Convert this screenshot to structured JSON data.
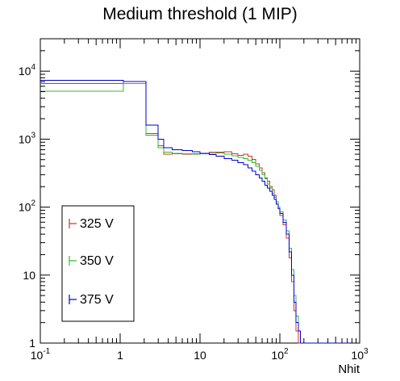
{
  "chart_data": {
    "type": "line",
    "title": "Medium threshold (1 MIP)",
    "xlabel": "Nhit",
    "ylabel": "",
    "x_scale": "log",
    "y_scale": "log",
    "xlim": [
      0.1,
      1000
    ],
    "ylim": [
      1,
      30000
    ],
    "grid": false,
    "legend_position": "bottom-left",
    "x_tick_labels": [
      {
        "value": 0.1,
        "base": "10",
        "exp": "-1"
      },
      {
        "value": 1,
        "base": "1",
        "exp": ""
      },
      {
        "value": 10,
        "base": "10",
        "exp": ""
      },
      {
        "value": 100,
        "base": "10",
        "exp": "2"
      },
      {
        "value": 1000,
        "base": "10",
        "exp": "3"
      }
    ],
    "y_tick_labels": [
      {
        "value": 1,
        "base": "1",
        "exp": ""
      },
      {
        "value": 10,
        "base": "10",
        "exp": ""
      },
      {
        "value": 100,
        "base": "10",
        "exp": "2"
      },
      {
        "value": 1000,
        "base": "10",
        "exp": "3"
      },
      {
        "value": 10000,
        "base": "10",
        "exp": "4"
      }
    ],
    "series": [
      {
        "name": "325 V",
        "color": "#cc3333",
        "x": [
          0.1,
          1.1,
          2.1,
          3.0,
          3.5,
          4.5,
          6,
          8,
          10,
          13,
          16,
          20,
          25,
          30,
          35,
          40,
          45,
          50,
          55,
          60,
          65,
          70,
          75,
          80,
          85,
          90,
          95,
          100,
          110,
          120,
          130,
          140,
          150,
          160,
          170,
          180,
          190,
          200
        ],
        "y": [
          6600,
          7000,
          1200,
          800,
          600,
          610,
          600,
          610,
          620,
          640,
          640,
          650,
          610,
          580,
          600,
          560,
          500,
          430,
          380,
          320,
          270,
          240,
          200,
          180,
          150,
          120,
          95,
          75,
          55,
          35,
          18,
          8,
          3,
          1.5,
          1,
          1,
          1,
          1
        ]
      },
      {
        "name": "350 V",
        "color": "#33bb33",
        "x": [
          0.1,
          1.1,
          2.1,
          3.0,
          3.5,
          4.5,
          6,
          8,
          10,
          13,
          16,
          20,
          25,
          30,
          35,
          40,
          45,
          50,
          55,
          60,
          65,
          70,
          75,
          80,
          85,
          90,
          95,
          100,
          110,
          120,
          130,
          140,
          150,
          160,
          170,
          180,
          190,
          200
        ],
        "y": [
          5100,
          6600,
          1150,
          750,
          640,
          620,
          610,
          600,
          610,
          620,
          630,
          600,
          570,
          540,
          520,
          490,
          450,
          400,
          350,
          300,
          260,
          220,
          190,
          160,
          140,
          120,
          100,
          85,
          65,
          45,
          25,
          12,
          5,
          2.5,
          1.5,
          1,
          1,
          1
        ]
      },
      {
        "name": "375 V",
        "color": "#0000cc",
        "x": [
          0.1,
          1.1,
          2.1,
          3.0,
          3.5,
          4.5,
          6,
          8,
          10,
          13,
          16,
          20,
          25,
          30,
          35,
          40,
          45,
          50,
          55,
          60,
          65,
          70,
          75,
          80,
          85,
          90,
          95,
          100,
          110,
          120,
          130,
          140,
          150,
          160,
          170,
          180,
          190,
          200
        ],
        "y": [
          7300,
          7000,
          1600,
          1000,
          750,
          700,
          680,
          650,
          620,
          590,
          560,
          520,
          490,
          450,
          420,
          380,
          340,
          300,
          270,
          240,
          210,
          190,
          170,
          150,
          130,
          110,
          95,
          80,
          60,
          40,
          22,
          10,
          4,
          2,
          1.5,
          1,
          1,
          1
        ]
      }
    ]
  }
}
